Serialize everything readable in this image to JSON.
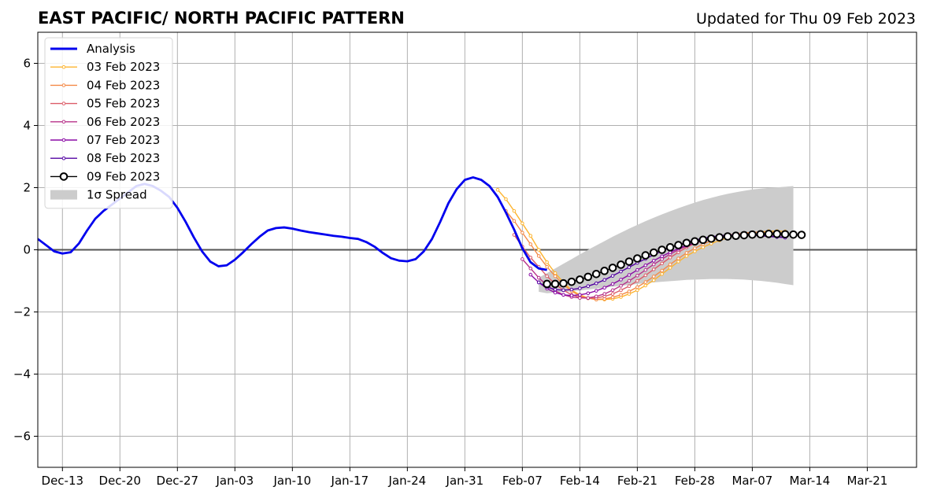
{
  "chart_data": {
    "type": "line",
    "title": "EAST PACIFIC/ NORTH PACIFIC PATTERN",
    "updated": "Updated for Thu 09 Feb 2023",
    "ylim": [
      -7,
      7
    ],
    "yticks": [
      -6,
      -4,
      -2,
      0,
      2,
      4,
      6
    ],
    "ytick_labels": [
      "−6",
      "−4",
      "−2",
      "0",
      "2",
      "4",
      "6"
    ],
    "xlim": [
      "2022-12-10",
      "2023-03-27"
    ],
    "xticks": [
      "2022-12-13",
      "2022-12-20",
      "2022-12-27",
      "2023-01-03",
      "2023-01-10",
      "2023-01-17",
      "2023-01-24",
      "2023-01-31",
      "2023-02-07",
      "2023-02-14",
      "2023-02-21",
      "2023-02-28",
      "2023-03-07",
      "2023-03-14",
      "2023-03-21"
    ],
    "xtick_labels": [
      "Dec-13",
      "Dec-20",
      "Dec-27",
      "Jan-03",
      "Jan-10",
      "Jan-17",
      "Jan-24",
      "Jan-31",
      "Feb-07",
      "Feb-14",
      "Feb-21",
      "Feb-28",
      "Mar-07",
      "Mar-14",
      "Mar-21"
    ],
    "grid": true,
    "legend_position": "upper-left",
    "legend": [
      {
        "label": "Analysis",
        "color": "#0000ee",
        "kind": "thick-line"
      },
      {
        "label": "03 Feb 2023",
        "color": "#fdb42f",
        "kind": "line-dots"
      },
      {
        "label": "04 Feb 2023",
        "color": "#f48a48",
        "kind": "line-dots"
      },
      {
        "label": "05 Feb 2023",
        "color": "#dc5c68",
        "kind": "line-dots"
      },
      {
        "label": "06 Feb 2023",
        "color": "#b7328a",
        "kind": "line-dots"
      },
      {
        "label": "07 Feb 2023",
        "color": "#8b0aa5",
        "kind": "line-dots"
      },
      {
        "label": "08 Feb 2023",
        "color": "#5302a3",
        "kind": "line-dots"
      },
      {
        "label": "09 Feb 2023",
        "color": "#000000",
        "kind": "open-circles"
      },
      {
        "label": "1σ Spread",
        "color": "#cccccc",
        "kind": "patch"
      }
    ],
    "analysis": {
      "name": "Analysis",
      "color": "#0000ee",
      "start": "2022-12-10",
      "values": [
        0.35,
        0.15,
        -0.05,
        -0.12,
        -0.08,
        0.2,
        0.62,
        1.0,
        1.25,
        1.45,
        1.65,
        1.85,
        2.05,
        2.12,
        2.05,
        1.9,
        1.7,
        1.35,
        0.9,
        0.4,
        -0.05,
        -0.38,
        -0.53,
        -0.5,
        -0.32,
        -0.08,
        0.18,
        0.42,
        0.62,
        0.7,
        0.72,
        0.68,
        0.62,
        0.57,
        0.53,
        0.49,
        0.45,
        0.42,
        0.38,
        0.35,
        0.25,
        0.1,
        -0.1,
        -0.27,
        -0.35,
        -0.37,
        -0.3,
        -0.05,
        0.35,
        0.9,
        1.5,
        1.95,
        2.25,
        2.33,
        2.25,
        2.05,
        1.7,
        1.2,
        0.65,
        0.05,
        -0.4,
        -0.6,
        -0.65
      ]
    },
    "spread": {
      "name": "1σ Spread",
      "start": "2023-02-09",
      "upper": [
        -0.9,
        -0.75,
        -0.6,
        -0.45,
        -0.3,
        -0.15,
        0.0,
        0.14,
        0.28,
        0.42,
        0.55,
        0.68,
        0.8,
        0.92,
        1.03,
        1.14,
        1.24,
        1.34,
        1.43,
        1.52,
        1.6,
        1.67,
        1.74,
        1.8,
        1.85,
        1.9,
        1.94,
        1.97,
        1.99,
        2.01,
        2.03,
        2.05
      ],
      "lower": [
        -1.35,
        -1.4,
        -1.38,
        -1.36,
        -1.34,
        -1.31,
        -1.28,
        -1.25,
        -1.22,
        -1.19,
        -1.16,
        -1.13,
        -1.1,
        -1.07,
        -1.05,
        -1.03,
        -1.01,
        -0.99,
        -0.97,
        -0.96,
        -0.95,
        -0.94,
        -0.94,
        -0.94,
        -0.95,
        -0.96,
        -0.98,
        -1.0,
        -1.03,
        -1.06,
        -1.1,
        -1.14
      ]
    },
    "series": [
      {
        "name": "03 Feb 2023",
        "color": "#fdb42f",
        "start": "2023-02-04",
        "values": [
          1.93,
          1.63,
          1.25,
          0.85,
          0.45,
          0.0,
          -0.4,
          -0.75,
          -1.05,
          -1.3,
          -1.45,
          -1.55,
          -1.6,
          -1.6,
          -1.58,
          -1.52,
          -1.42,
          -1.3,
          -1.15,
          -0.98,
          -0.78,
          -0.58,
          -0.38,
          -0.2,
          -0.05,
          0.08,
          0.2,
          0.3,
          0.38,
          0.45,
          0.5,
          0.55,
          0.57,
          0.6,
          0.6,
          0.59
        ]
      },
      {
        "name": "04 Feb 2023",
        "color": "#f48a48",
        "start": "2023-02-05",
        "values": [
          1.25,
          0.93,
          0.55,
          0.18,
          -0.2,
          -0.55,
          -0.85,
          -1.12,
          -1.33,
          -1.48,
          -1.56,
          -1.6,
          -1.58,
          -1.53,
          -1.45,
          -1.34,
          -1.2,
          -1.04,
          -0.86,
          -0.67,
          -0.47,
          -0.28,
          -0.1,
          0.05,
          0.18,
          0.29,
          0.38,
          0.45,
          0.5,
          0.54,
          0.56,
          0.57,
          0.56,
          0.55,
          0.53
        ]
      },
      {
        "name": "05 Feb 2023",
        "color": "#dc5c68",
        "start": "2023-02-06",
        "values": [
          0.48,
          0.1,
          -0.25,
          -0.55,
          -0.85,
          -1.1,
          -1.3,
          -1.45,
          -1.53,
          -1.56,
          -1.55,
          -1.5,
          -1.42,
          -1.3,
          -1.17,
          -1.0,
          -0.82,
          -0.63,
          -0.44,
          -0.25,
          -0.08,
          0.08,
          0.2,
          0.3,
          0.38,
          0.44,
          0.48,
          0.5,
          0.51,
          0.5,
          0.48,
          0.45,
          0.42,
          0.4
        ]
      },
      {
        "name": "06 Feb 2023",
        "color": "#b7328a",
        "start": "2023-02-07",
        "values": [
          -0.3,
          -0.6,
          -0.9,
          -1.15,
          -1.32,
          -1.45,
          -1.52,
          -1.55,
          -1.55,
          -1.5,
          -1.42,
          -1.3,
          -1.16,
          -1.0,
          -0.83,
          -0.65,
          -0.47,
          -0.3,
          -0.14,
          0.0,
          0.12,
          0.22,
          0.3,
          0.36,
          0.41,
          0.45,
          0.47,
          0.48,
          0.47,
          0.46,
          0.44,
          0.42,
          0.4
        ]
      },
      {
        "name": "07 Feb 2023",
        "color": "#8b0aa5",
        "start": "2023-02-08",
        "values": [
          -0.8,
          -1.05,
          -1.25,
          -1.38,
          -1.45,
          -1.47,
          -1.45,
          -1.4,
          -1.32,
          -1.22,
          -1.1,
          -0.96,
          -0.81,
          -0.65,
          -0.5,
          -0.35,
          -0.21,
          -0.08,
          0.04,
          0.14,
          0.22,
          0.3,
          0.36,
          0.41,
          0.44,
          0.46,
          0.47,
          0.47,
          0.46,
          0.44,
          0.42,
          0.4
        ]
      },
      {
        "name": "08 Feb 2023",
        "color": "#5302a3",
        "start": "2023-02-09",
        "values": [
          -1.05,
          -1.2,
          -1.28,
          -1.3,
          -1.28,
          -1.24,
          -1.17,
          -1.08,
          -0.97,
          -0.84,
          -0.7,
          -0.56,
          -0.42,
          -0.29,
          -0.16,
          -0.04,
          0.07,
          0.16,
          0.24,
          0.31,
          0.37,
          0.42,
          0.45,
          0.47,
          0.48,
          0.48,
          0.47,
          0.45,
          0.43,
          0.41,
          0.39
        ]
      },
      {
        "name": "09 Feb 2023",
        "color": "#000000",
        "start": "2023-02-10",
        "values": [
          -1.1,
          -1.1,
          -1.08,
          -1.03,
          -0.96,
          -0.87,
          -0.78,
          -0.68,
          -0.58,
          -0.48,
          -0.38,
          -0.28,
          -0.18,
          -0.09,
          0.0,
          0.08,
          0.15,
          0.22,
          0.27,
          0.32,
          0.36,
          0.4,
          0.43,
          0.45,
          0.47,
          0.49,
          0.5,
          0.51,
          0.51,
          0.5,
          0.49,
          0.48
        ]
      }
    ]
  }
}
